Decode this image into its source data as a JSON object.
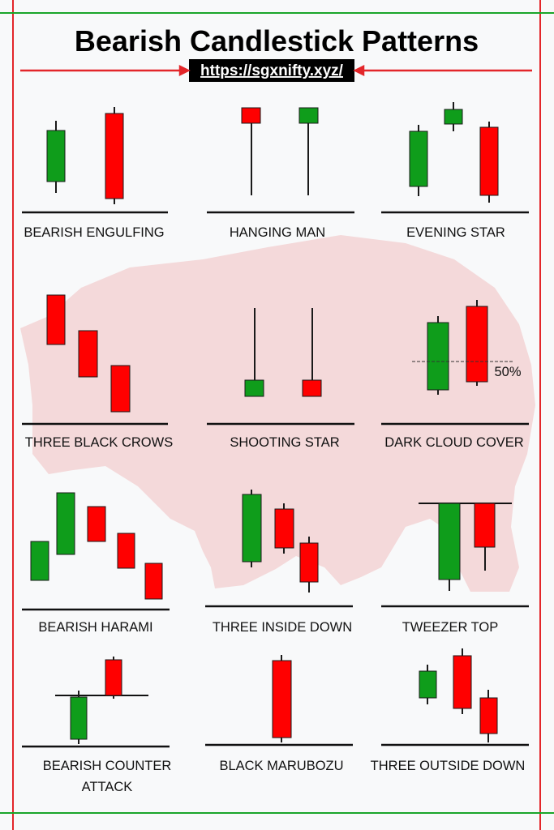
{
  "header": {
    "title": "Bearish Candlestick Patterns",
    "url": "https://sgxnifty.xyz/"
  },
  "patterns": [
    {
      "label": "BEARISH ENGULFING"
    },
    {
      "label": "HANGING MAN"
    },
    {
      "label": "EVENING STAR"
    },
    {
      "label": "THREE BLACK CROWS"
    },
    {
      "label": "SHOOTING STAR"
    },
    {
      "label": "DARK CLOUD COVER",
      "annotation": "50%"
    },
    {
      "label": "BEARISH HARAMI"
    },
    {
      "label": "THREE INSIDE DOWN"
    },
    {
      "label": "TWEEZER TOP"
    },
    {
      "label": [
        "BEARISH COUNTER",
        "ATTACK"
      ]
    },
    {
      "label": "BLACK MARUBOZU"
    },
    {
      "label": "THREE OUTSIDE DOWN"
    }
  ]
}
